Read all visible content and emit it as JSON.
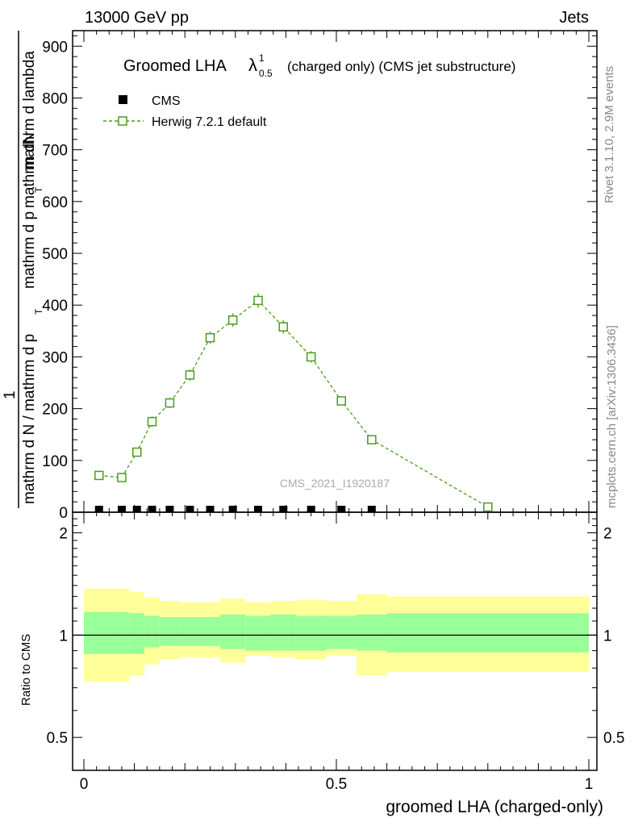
{
  "header": {
    "energy_label": "13000 GeV pp",
    "process_label": "Jets",
    "rivet_label": "Rivet 3.1.10,  2.9M events",
    "mcplots_label": "mcplots.cern.ch [arXiv:1306.3436]",
    "analysis_label": "CMS_2021_I1920187"
  },
  "title": {
    "main": "Groomed LHA",
    "lambda": "λ",
    "sup": "1",
    "sub": "0.5",
    "rest": "(charged only) (CMS jet substructure)"
  },
  "legend": {
    "data_label": "CMS",
    "mc_label": "Herwig 7.2.1 default"
  },
  "axes": {
    "ylabel_numerator": "mathrm dN",
    "ylabel_numerator_2": "mathrm d p",
    "ylabel_numerator_3": "mathrm d lambda",
    "ylabel_numerator_sub": "T",
    "ylabel_one": "1",
    "ylabel_denominator": "mathrm d N / mathrm d p",
    "ylabel_denominator_sub": "T",
    "ratio_ylabel": "Ratio to CMS",
    "xlabel": "groomed LHA (charged-only)"
  },
  "chart_data": {
    "type": "line",
    "title": "Groomed LHA λ^1_0.5 (charged only) (CMS jet substructure)",
    "xlabel": "groomed LHA (charged-only)",
    "ylabel": "1/(dN/dpT) d²N/(dpT dλ)",
    "xlim": [
      0,
      1
    ],
    "ylim": [
      0,
      930
    ],
    "x_ticks": [
      0,
      0.5,
      1
    ],
    "x_tick_labels": [
      "0",
      "0.5",
      "1"
    ],
    "y_ticks": [
      0,
      100,
      200,
      300,
      400,
      500,
      600,
      700,
      800,
      900
    ],
    "y_tick_labels": [
      "0",
      "100",
      "200",
      "300",
      "400",
      "500",
      "600",
      "700",
      "800",
      "900"
    ],
    "series": [
      {
        "name": "CMS",
        "color": "#000000",
        "marker": "filled-square",
        "x": [
          0.03,
          0.075,
          0.105,
          0.135,
          0.17,
          0.21,
          0.25,
          0.295,
          0.345,
          0.395,
          0.45,
          0.51,
          0.57
        ],
        "values": [
          1.5,
          1.5,
          1.5,
          1.5,
          1.5,
          1.5,
          1.5,
          1.5,
          1.5,
          1.5,
          1.5,
          1.5,
          1.5
        ]
      },
      {
        "name": "Herwig 7.2.1 default",
        "color": "#4a9c1a",
        "marker": "open-square",
        "line": "dashed",
        "x": [
          0.03,
          0.075,
          0.105,
          0.135,
          0.17,
          0.21,
          0.25,
          0.295,
          0.345,
          0.395,
          0.45,
          0.51,
          0.57,
          0.8
        ],
        "values": [
          71,
          67,
          116,
          175,
          211,
          265,
          337,
          371,
          409,
          358,
          300,
          215,
          140,
          10
        ],
        "errors": [
          5,
          5,
          8,
          10,
          10,
          11,
          12,
          13,
          14,
          13,
          11,
          8,
          5,
          2
        ]
      }
    ],
    "ratio": {
      "ylabel": "Ratio to CMS",
      "scale": "log",
      "ylim": [
        0.4,
        2.3
      ],
      "y_ticks": [
        0.5,
        1,
        2
      ],
      "y_tick_labels": [
        "0.5",
        "1",
        "2"
      ],
      "reference_line": 1,
      "bins": [
        0,
        0.06,
        0.09,
        0.12,
        0.15,
        0.19,
        0.23,
        0.27,
        0.32,
        0.37,
        0.42,
        0.48,
        0.54,
        0.6,
        1.0
      ],
      "inner_band_low": [
        0.88,
        0.88,
        0.88,
        0.92,
        0.93,
        0.93,
        0.93,
        0.91,
        0.9,
        0.9,
        0.9,
        0.91,
        0.9,
        0.89,
        0.89
      ],
      "inner_band_high": [
        1.17,
        1.17,
        1.16,
        1.14,
        1.13,
        1.13,
        1.13,
        1.15,
        1.14,
        1.15,
        1.14,
        1.14,
        1.15,
        1.16,
        1.16
      ],
      "outer_band_low": [
        0.73,
        0.73,
        0.76,
        0.82,
        0.85,
        0.86,
        0.86,
        0.83,
        0.87,
        0.86,
        0.85,
        0.87,
        0.76,
        0.78,
        0.75
      ],
      "outer_band_high": [
        1.37,
        1.37,
        1.34,
        1.29,
        1.26,
        1.25,
        1.25,
        1.28,
        1.25,
        1.26,
        1.27,
        1.26,
        1.32,
        1.3,
        1.35
      ],
      "inner_color": "#99ff99",
      "outer_color": "#ffff99"
    }
  }
}
